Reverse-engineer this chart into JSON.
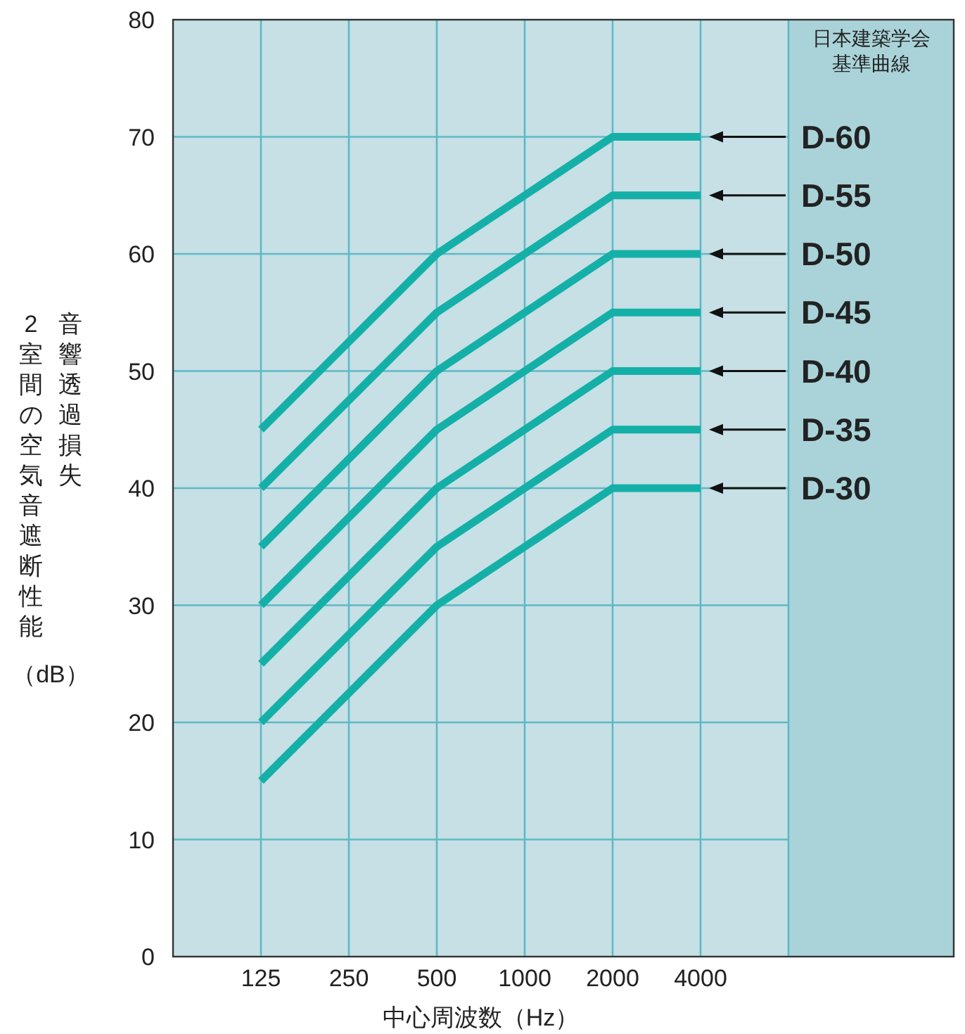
{
  "chart_data": {
    "type": "line",
    "xlabel": "中心周波数（Hz）",
    "ylabel": "音響透過損失2室間の空気音遮断性能（dB）",
    "legend_title": "日本建築学会基準曲線",
    "categories": [
      "125",
      "250",
      "500",
      "1000",
      "2000",
      "4000"
    ],
    "ylim": [
      0,
      80
    ],
    "yticks": [
      0,
      10,
      20,
      30,
      40,
      50,
      60,
      70,
      80
    ],
    "grid": true,
    "legend": "right",
    "marker": "none",
    "line_style": "solid",
    "series": [
      {
        "name": "D-60",
        "color": "#14b0a8",
        "values": [
          45,
          52.5,
          60,
          65,
          70,
          70
        ]
      },
      {
        "name": "D-55",
        "color": "#14b0a8",
        "values": [
          40,
          47.5,
          55,
          60,
          65,
          65
        ]
      },
      {
        "name": "D-50",
        "color": "#14b0a8",
        "values": [
          35,
          42.5,
          50,
          55,
          60,
          60
        ]
      },
      {
        "name": "D-45",
        "color": "#14b0a8",
        "values": [
          30,
          37.5,
          45,
          50,
          55,
          55
        ]
      },
      {
        "name": "D-40",
        "color": "#14b0a8",
        "values": [
          25,
          32.5,
          40,
          45,
          50,
          50
        ]
      },
      {
        "name": "D-35",
        "color": "#14b0a8",
        "values": [
          20,
          27.5,
          35,
          40,
          45,
          45
        ]
      },
      {
        "name": "D-30",
        "color": "#14b0a8",
        "values": [
          15,
          22.5,
          30,
          35,
          40,
          40
        ]
      }
    ]
  }
}
